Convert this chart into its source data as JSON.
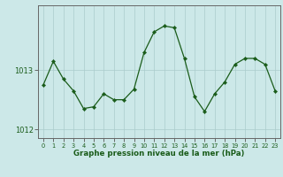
{
  "x": [
    0,
    1,
    2,
    3,
    4,
    5,
    6,
    7,
    8,
    9,
    10,
    11,
    12,
    13,
    14,
    15,
    16,
    17,
    18,
    19,
    20,
    21,
    22,
    23
  ],
  "y": [
    1012.75,
    1013.15,
    1012.85,
    1012.65,
    1012.35,
    1012.38,
    1012.6,
    1012.5,
    1012.5,
    1012.68,
    1013.3,
    1013.65,
    1013.75,
    1013.72,
    1013.2,
    1012.55,
    1012.3,
    1012.6,
    1012.8,
    1013.1,
    1013.2,
    1013.2,
    1013.1,
    1012.65
  ],
  "ylim": [
    1011.85,
    1014.1
  ],
  "yticks": [
    1012,
    1013
  ],
  "bg_color": "#cce8e8",
  "line_color": "#1a5c1a",
  "marker_color": "#1a5c1a",
  "grid_color": "#aacccc",
  "axis_label_color": "#1a5c1a",
  "xlabel": "Graphe pression niveau de la mer (hPa)",
  "tick_label_color": "#1a5c1a",
  "border_color": "#666666",
  "spine_color": "#666666"
}
